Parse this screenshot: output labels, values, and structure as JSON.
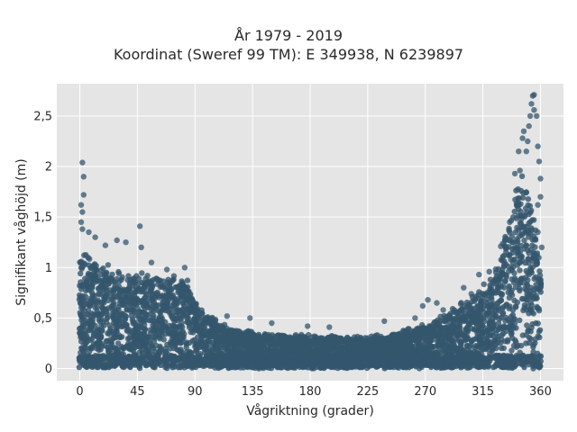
{
  "chart_data": {
    "type": "scatter",
    "title": [
      "År 1979 - 2019",
      "Koordinat (Sweref 99 TM): E 349938, N 6239897"
    ],
    "xlabel": "Vågriktning (grader)",
    "ylabel": "Signifikant våghöjd (m)",
    "xlim": [
      -18,
      378
    ],
    "ylim": [
      -0.12,
      2.82
    ],
    "xticks": [
      0,
      45,
      90,
      135,
      180,
      225,
      270,
      315,
      360
    ],
    "xtick_labels": [
      "0",
      "45",
      "90",
      "135",
      "180",
      "225",
      "270",
      "315",
      "360"
    ],
    "yticks": [
      0,
      0.5,
      1,
      1.5,
      2,
      2.5
    ],
    "ytick_labels": [
      "0",
      "0,5",
      "1",
      "1,5",
      "2",
      "2,5"
    ],
    "grid": true,
    "marker_color": "#34566d",
    "plot_background": "#e5e5e5",
    "envelope": {
      "direction": [
        0,
        5,
        15,
        30,
        45,
        60,
        75,
        85,
        90,
        100,
        120,
        150,
        180,
        210,
        240,
        270,
        290,
        310,
        325,
        335,
        345,
        355,
        360
      ],
      "upper_height": [
        1.15,
        1.1,
        1.0,
        0.92,
        0.9,
        0.88,
        0.9,
        0.85,
        0.62,
        0.5,
        0.38,
        0.33,
        0.32,
        0.3,
        0.32,
        0.42,
        0.55,
        0.72,
        0.95,
        1.4,
        1.9,
        1.45,
        0.95
      ]
    },
    "outliers": [
      {
        "x": 2,
        "y": 2.04
      },
      {
        "x": 3,
        "y": 1.9
      },
      {
        "x": 3,
        "y": 1.72
      },
      {
        "x": 1,
        "y": 1.62
      },
      {
        "x": 2,
        "y": 1.55
      },
      {
        "x": 1,
        "y": 1.45
      },
      {
        "x": 2,
        "y": 1.38
      },
      {
        "x": 7,
        "y": 1.35
      },
      {
        "x": 47,
        "y": 1.41
      },
      {
        "x": 29,
        "y": 1.27
      },
      {
        "x": 36,
        "y": 1.25
      },
      {
        "x": 48,
        "y": 1.2
      },
      {
        "x": 20,
        "y": 1.22
      },
      {
        "x": 12,
        "y": 1.3
      },
      {
        "x": 56,
        "y": 1.05
      },
      {
        "x": 82,
        "y": 1.0
      },
      {
        "x": 68,
        "y": 0.98
      },
      {
        "x": 115,
        "y": 0.52
      },
      {
        "x": 133,
        "y": 0.5
      },
      {
        "x": 150,
        "y": 0.45
      },
      {
        "x": 178,
        "y": 0.42
      },
      {
        "x": 195,
        "y": 0.41
      },
      {
        "x": 238,
        "y": 0.47
      },
      {
        "x": 262,
        "y": 0.5
      },
      {
        "x": 268,
        "y": 0.62
      },
      {
        "x": 272,
        "y": 0.68
      },
      {
        "x": 279,
        "y": 0.65
      },
      {
        "x": 284,
        "y": 0.58
      },
      {
        "x": 300,
        "y": 0.8
      },
      {
        "x": 306,
        "y": 0.74
      },
      {
        "x": 312,
        "y": 0.93
      },
      {
        "x": 320,
        "y": 0.96
      },
      {
        "x": 329,
        "y": 1.21
      },
      {
        "x": 336,
        "y": 1.45
      },
      {
        "x": 340,
        "y": 1.93
      },
      {
        "x": 343,
        "y": 2.15
      },
      {
        "x": 346,
        "y": 2.28
      },
      {
        "x": 347,
        "y": 2.35
      },
      {
        "x": 350,
        "y": 2.25
      },
      {
        "x": 351,
        "y": 2.4
      },
      {
        "x": 352,
        "y": 2.5
      },
      {
        "x": 353,
        "y": 2.62
      },
      {
        "x": 354,
        "y": 2.7
      },
      {
        "x": 355,
        "y": 2.71
      },
      {
        "x": 355,
        "y": 2.56
      },
      {
        "x": 357,
        "y": 2.5
      },
      {
        "x": 358,
        "y": 2.2
      },
      {
        "x": 359,
        "y": 2.05
      },
      {
        "x": 360,
        "y": 1.88
      },
      {
        "x": 360,
        "y": 1.7
      },
      {
        "x": 358,
        "y": 1.62
      },
      {
        "x": 358,
        "y": 1.35
      },
      {
        "x": 361,
        "y": 1.2
      },
      {
        "x": 349,
        "y": 2.15
      },
      {
        "x": 344,
        "y": 1.96
      }
    ]
  }
}
